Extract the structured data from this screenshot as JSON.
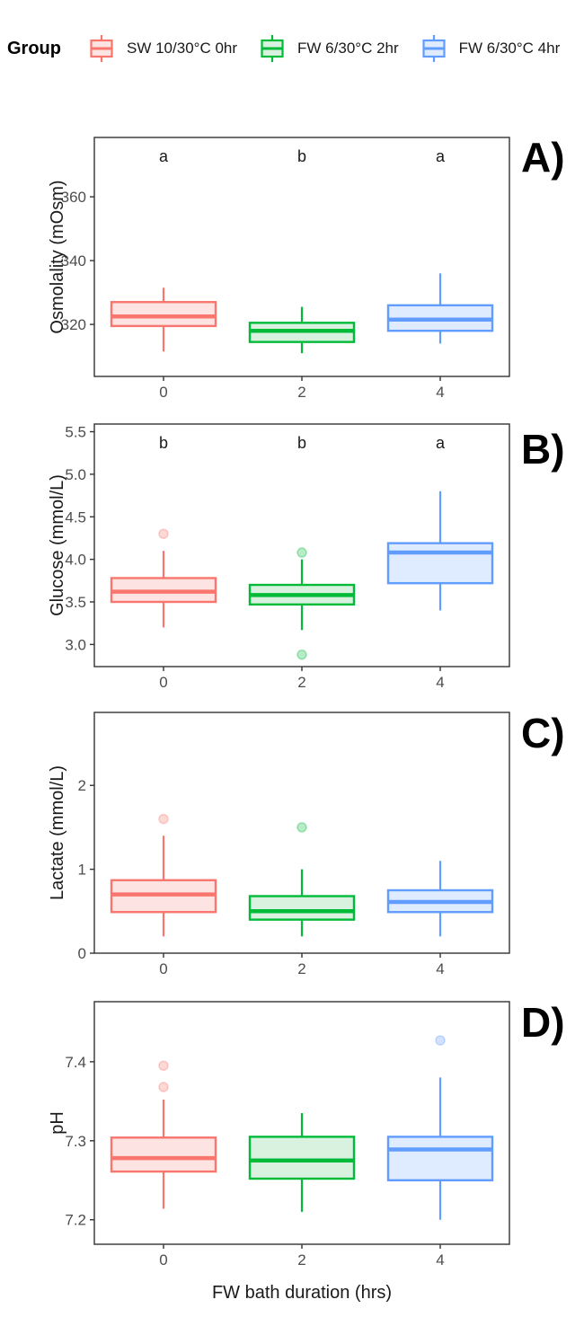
{
  "legend": {
    "title": "Group",
    "items": [
      {
        "label": "SW 10/30°C 0hr",
        "color": "#F8766D",
        "fill": "#FDE3E1"
      },
      {
        "label": "FW 6/30°C 2hr",
        "color": "#00BA38",
        "fill": "#D8F2DF"
      },
      {
        "label": "FW 6/30°C 4hr",
        "color": "#619CFF",
        "fill": "#DFEBFF"
      }
    ]
  },
  "xlabel": "FW bath duration (hrs)",
  "colors": {
    "axis": "#333333",
    "tick_label": "#4d4d4d",
    "sig_letter": "#1a1a1a"
  },
  "chart_data": [
    {
      "type": "boxplot",
      "panel_label": "A)",
      "ylabel": "Osmolality (mOsm)",
      "ylim": [
        303.7,
        378.6
      ],
      "yticks": [
        320,
        340,
        360
      ],
      "ytick_labels": [
        "320",
        "340",
        "360"
      ],
      "x_categories": [
        "0",
        "2",
        "4"
      ],
      "sig_letters": [
        "a",
        "b",
        "a"
      ],
      "groups": [
        {
          "name": "SW 10/30°C 0hr",
          "whisker_low": 311.5,
          "q1": 319.5,
          "median": 322.5,
          "q3": 327,
          "whisker_high": 331.5,
          "outliers": []
        },
        {
          "name": "FW 6/30°C 2hr",
          "whisker_low": 311,
          "q1": 314.5,
          "median": 318,
          "q3": 320.5,
          "whisker_high": 325.5,
          "outliers": []
        },
        {
          "name": "FW 6/30°C 4hr",
          "whisker_low": 314,
          "q1": 318,
          "median": 321.5,
          "q3": 326,
          "whisker_high": 336,
          "outliers": []
        }
      ]
    },
    {
      "type": "boxplot",
      "panel_label": "B)",
      "ylabel": "Glucose (mmol/L)",
      "ylim": [
        2.74,
        5.59
      ],
      "yticks": [
        3.0,
        3.5,
        4.0,
        4.5,
        5.0,
        5.5
      ],
      "ytick_labels": [
        "3.0",
        "3.5",
        "4.0",
        "4.5",
        "5.0",
        "5.5"
      ],
      "x_categories": [
        "0",
        "2",
        "4"
      ],
      "sig_letters": [
        "b",
        "b",
        "a"
      ],
      "groups": [
        {
          "name": "SW 10/30°C 0hr",
          "whisker_low": 3.2,
          "q1": 3.5,
          "median": 3.62,
          "q3": 3.78,
          "whisker_high": 4.1,
          "outliers": [
            4.3
          ]
        },
        {
          "name": "FW 6/30°C 2hr",
          "whisker_low": 3.17,
          "q1": 3.47,
          "median": 3.58,
          "q3": 3.7,
          "whisker_high": 4.0,
          "outliers": [
            4.08,
            2.88
          ]
        },
        {
          "name": "FW 6/30°C 4hr",
          "whisker_low": 3.4,
          "q1": 3.72,
          "median": 4.08,
          "q3": 4.19,
          "whisker_high": 4.8,
          "outliers": []
        }
      ]
    },
    {
      "type": "boxplot",
      "panel_label": "C)",
      "ylabel": "Lactate (mmol/L)",
      "ylim": [
        0,
        2.87
      ],
      "yticks": [
        0,
        1,
        2
      ],
      "ytick_labels": [
        "0",
        "1",
        "2"
      ],
      "x_categories": [
        "0",
        "2",
        "4"
      ],
      "sig_letters": [],
      "groups": [
        {
          "name": "SW 10/30°C 0hr",
          "whisker_low": 0.2,
          "q1": 0.49,
          "median": 0.7,
          "q3": 0.87,
          "whisker_high": 1.4,
          "outliers": [
            1.6
          ]
        },
        {
          "name": "FW 6/30°C 2hr",
          "whisker_low": 0.2,
          "q1": 0.4,
          "median": 0.5,
          "q3": 0.68,
          "whisker_high": 1.0,
          "outliers": [
            1.5
          ]
        },
        {
          "name": "FW 6/30°C 4hr",
          "whisker_low": 0.2,
          "q1": 0.49,
          "median": 0.61,
          "q3": 0.75,
          "whisker_high": 1.1,
          "outliers": []
        }
      ]
    },
    {
      "type": "boxplot",
      "panel_label": "D)",
      "ylabel": "pH",
      "ylim": [
        7.169,
        7.476
      ],
      "yticks": [
        7.2,
        7.3,
        7.4
      ],
      "ytick_labels": [
        "7.2",
        "7.3",
        "7.4"
      ],
      "x_categories": [
        "0",
        "2",
        "4"
      ],
      "sig_letters": [],
      "groups": [
        {
          "name": "SW 10/30°C 0hr",
          "whisker_low": 7.214,
          "q1": 7.261,
          "median": 7.278,
          "q3": 7.304,
          "whisker_high": 7.352,
          "outliers": [
            7.395,
            7.368
          ]
        },
        {
          "name": "FW 6/30°C 2hr",
          "whisker_low": 7.21,
          "q1": 7.252,
          "median": 7.275,
          "q3": 7.305,
          "whisker_high": 7.335,
          "outliers": []
        },
        {
          "name": "FW 6/30°C 4hr",
          "whisker_low": 7.2,
          "q1": 7.25,
          "median": 7.289,
          "q3": 7.305,
          "whisker_high": 7.38,
          "outliers": [
            7.427
          ]
        }
      ]
    }
  ]
}
